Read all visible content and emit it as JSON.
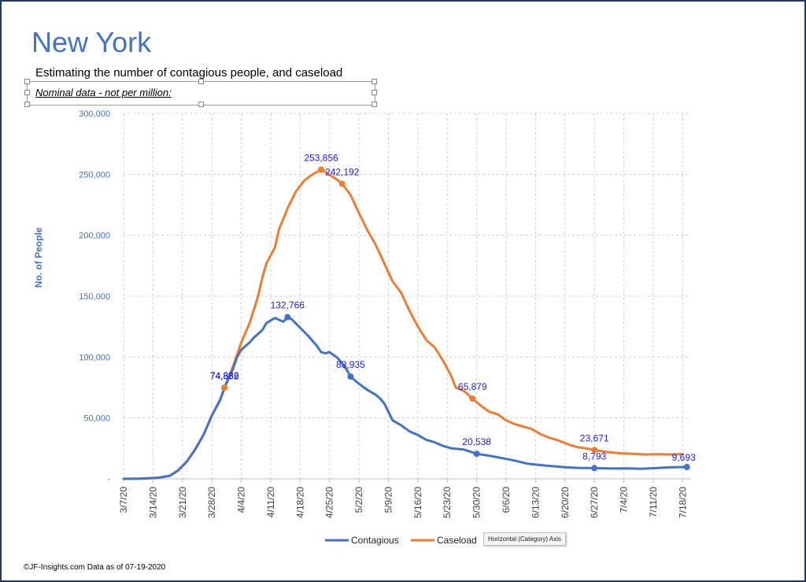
{
  "title": "New York",
  "subtitle": "Estimating  the number of contagious people, and caseload",
  "note": "Nominal data - not per million:",
  "footer": "©JF-Insights.com  Data as of 07-19-2020",
  "tooltip": "Horizontal (Category) Axis",
  "colors": {
    "contagious": "#4472c4",
    "caseload": "#ed7d31",
    "title": "#4472c4",
    "labels": "#1a1aff"
  },
  "chart_data": {
    "type": "line",
    "ylabel": "No. of People",
    "ylim": [
      0,
      300000
    ],
    "y_ticks": [
      {
        "value": 0,
        "label": "-"
      },
      {
        "value": 50000,
        "label": "50,000"
      },
      {
        "value": 100000,
        "label": "100,000"
      },
      {
        "value": 150000,
        "label": "150,000"
      },
      {
        "value": 200000,
        "label": "200,000"
      },
      {
        "value": 250000,
        "label": "250,000"
      },
      {
        "value": 300000,
        "label": "300,000"
      }
    ],
    "x_range_days": [
      0,
      135
    ],
    "x_ticks": [
      {
        "day": 0,
        "label": "3/7/20"
      },
      {
        "day": 7,
        "label": "3/14/20"
      },
      {
        "day": 14,
        "label": "3/21/20"
      },
      {
        "day": 21,
        "label": "3/28/20"
      },
      {
        "day": 28,
        "label": "4/4/20"
      },
      {
        "day": 35,
        "label": "4/11/20"
      },
      {
        "day": 42,
        "label": "4/18/20"
      },
      {
        "day": 49,
        "label": "4/25/20"
      },
      {
        "day": 56,
        "label": "5/2/20"
      },
      {
        "day": 63,
        "label": "5/9/20"
      },
      {
        "day": 70,
        "label": "5/16/20"
      },
      {
        "day": 77,
        "label": "5/23/20"
      },
      {
        "day": 84,
        "label": "5/30/20"
      },
      {
        "day": 91,
        "label": "6/6/20"
      },
      {
        "day": 98,
        "label": "6/13/20"
      },
      {
        "day": 105,
        "label": "6/20/20"
      },
      {
        "day": 112,
        "label": "6/27/20"
      },
      {
        "day": 119,
        "label": "7/4/20"
      },
      {
        "day": 126,
        "label": "7/11/20"
      },
      {
        "day": 133,
        "label": "7/18/20"
      }
    ],
    "series": [
      {
        "name": "Contagious",
        "points": [
          [
            0,
            0
          ],
          [
            4,
            200
          ],
          [
            8,
            800
          ],
          [
            11,
            2500
          ],
          [
            13,
            7000
          ],
          [
            15,
            14000
          ],
          [
            17,
            24000
          ],
          [
            19,
            36000
          ],
          [
            21,
            52000
          ],
          [
            23,
            65000
          ],
          [
            24,
            74832
          ],
          [
            26,
            90000
          ],
          [
            27,
            100000
          ],
          [
            28,
            106000
          ],
          [
            30,
            112000
          ],
          [
            31,
            116000
          ],
          [
            33,
            122000
          ],
          [
            34,
            128000
          ],
          [
            36,
            132000
          ],
          [
            38,
            129000
          ],
          [
            39,
            132766
          ],
          [
            40,
            131000
          ],
          [
            42,
            124000
          ],
          [
            44,
            117000
          ],
          [
            46,
            109000
          ],
          [
            47,
            104000
          ],
          [
            48,
            103000
          ],
          [
            49,
            104000
          ],
          [
            51,
            99000
          ],
          [
            53,
            90000
          ],
          [
            54,
            83935
          ],
          [
            56,
            78000
          ],
          [
            58,
            73000
          ],
          [
            60,
            69000
          ],
          [
            61,
            66000
          ],
          [
            62,
            62000
          ],
          [
            63,
            55000
          ],
          [
            64,
            48000
          ],
          [
            66,
            44000
          ],
          [
            68,
            39000
          ],
          [
            70,
            36000
          ],
          [
            72,
            32000
          ],
          [
            74,
            30000
          ],
          [
            76,
            27000
          ],
          [
            78,
            25000
          ],
          [
            81,
            24000
          ],
          [
            84,
            20538
          ],
          [
            87,
            19000
          ],
          [
            90,
            17000
          ],
          [
            93,
            15000
          ],
          [
            96,
            12500
          ],
          [
            100,
            11000
          ],
          [
            105,
            9500
          ],
          [
            108,
            9000
          ],
          [
            112,
            8793
          ],
          [
            116,
            8500
          ],
          [
            120,
            8600
          ],
          [
            123,
            8300
          ],
          [
            126,
            8700
          ],
          [
            129,
            9300
          ],
          [
            131,
            9500
          ],
          [
            134,
            9693
          ]
        ],
        "labels": [
          {
            "day": 24,
            "value": 74832,
            "text": "74,832"
          },
          {
            "day": 39,
            "value": 132766,
            "text": "132,766"
          },
          {
            "day": 54,
            "value": 83935,
            "text": "83,935"
          },
          {
            "day": 84,
            "value": 20538,
            "text": "20,538"
          },
          {
            "day": 112,
            "value": 8793,
            "text": "8,793"
          },
          {
            "day": 134,
            "value": 9693,
            "text": "9,693"
          }
        ]
      },
      {
        "name": "Caseload",
        "points": [
          [
            0,
            0
          ],
          [
            4,
            200
          ],
          [
            8,
            800
          ],
          [
            11,
            2500
          ],
          [
            13,
            7000
          ],
          [
            15,
            14000
          ],
          [
            17,
            24000
          ],
          [
            19,
            36000
          ],
          [
            21,
            52000
          ],
          [
            23,
            65000
          ],
          [
            24,
            74886
          ],
          [
            26,
            92000
          ],
          [
            27,
            102000
          ],
          [
            28,
            112000
          ],
          [
            30,
            128000
          ],
          [
            32,
            150000
          ],
          [
            33,
            165000
          ],
          [
            34,
            177000
          ],
          [
            36,
            190000
          ],
          [
            37,
            205000
          ],
          [
            39,
            222000
          ],
          [
            41,
            236000
          ],
          [
            43,
            245000
          ],
          [
            45,
            250000
          ],
          [
            47,
            253856
          ],
          [
            48,
            252000
          ],
          [
            51,
            245000
          ],
          [
            52,
            242192
          ],
          [
            54,
            233000
          ],
          [
            56,
            218000
          ],
          [
            58,
            204000
          ],
          [
            60,
            192000
          ],
          [
            62,
            177000
          ],
          [
            64,
            162000
          ],
          [
            66,
            153000
          ],
          [
            68,
            138000
          ],
          [
            70,
            125000
          ],
          [
            72,
            114000
          ],
          [
            74,
            108000
          ],
          [
            76,
            97000
          ],
          [
            78,
            84000
          ],
          [
            79,
            75000
          ],
          [
            81,
            72000
          ],
          [
            83,
            65879
          ],
          [
            85,
            60000
          ],
          [
            87,
            55000
          ],
          [
            89,
            53000
          ],
          [
            91,
            48000
          ],
          [
            93,
            45000
          ],
          [
            95,
            43000
          ],
          [
            97,
            41000
          ],
          [
            99,
            37000
          ],
          [
            101,
            34000
          ],
          [
            103,
            32000
          ],
          [
            106,
            28000
          ],
          [
            108,
            26000
          ],
          [
            110,
            25000
          ],
          [
            112,
            23671
          ],
          [
            115,
            22000
          ],
          [
            118,
            21000
          ],
          [
            121,
            20500
          ],
          [
            124,
            20000
          ],
          [
            127,
            20200
          ],
          [
            130,
            20000
          ],
          [
            133,
            20300
          ]
        ],
        "labels": [
          {
            "day": 24,
            "value": 74886,
            "text": "74,886"
          },
          {
            "day": 47,
            "value": 253856,
            "text": "253,856"
          },
          {
            "day": 52,
            "value": 242192,
            "text": "242,192"
          },
          {
            "day": 83,
            "value": 65879,
            "text": "65,879"
          },
          {
            "day": 112,
            "value": 23671,
            "text": "23,671"
          }
        ]
      }
    ],
    "legend": [
      "Contagious",
      "Caseload"
    ],
    "legend_position": "bottom",
    "grid": true
  }
}
